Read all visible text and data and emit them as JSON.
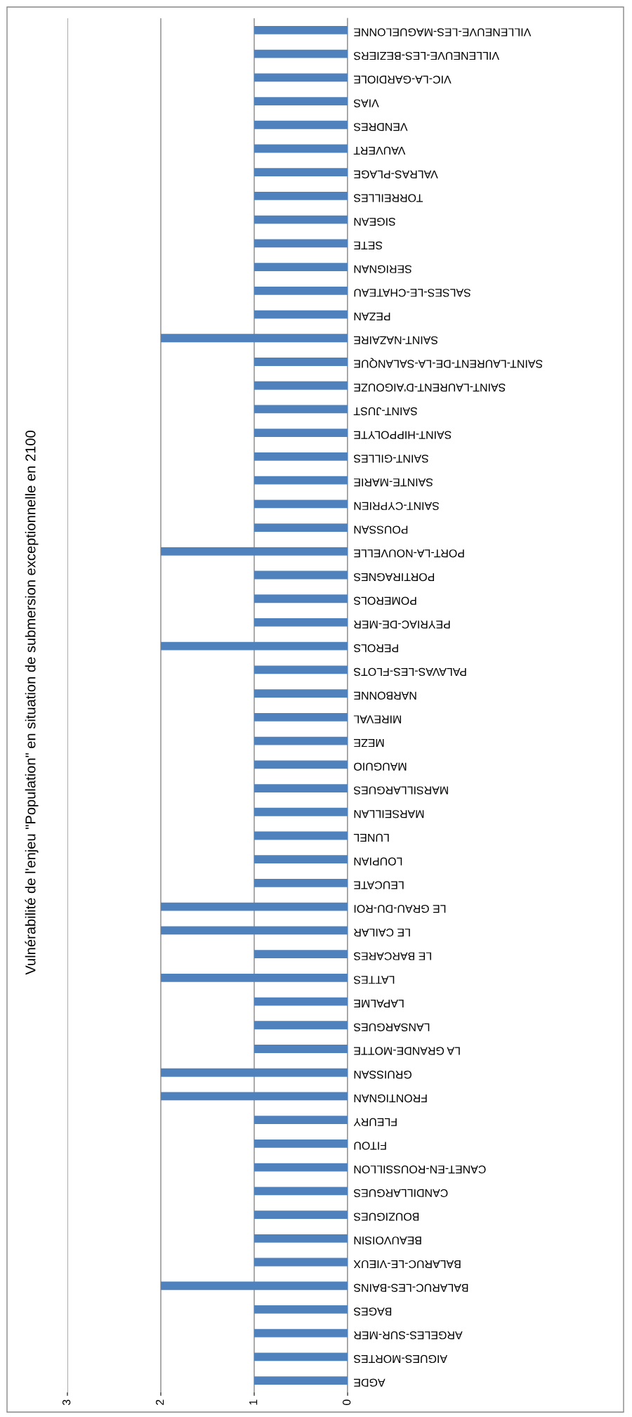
{
  "chart_data": {
    "type": "bar",
    "orientation": "horizontal",
    "title": "Vulnérabilité de l'enjeu \"Population\" en situation de submersion exceptionnelle en 2100",
    "categories": [
      "VILLENEUVE-LES-MAGUELONNE",
      "VILLENEUVE-LES-BEZIERS",
      "VIC-LA-GARDIOLE",
      "VIAS",
      "VENDRES",
      "VAUVERT",
      "VALRAS-PLAGE",
      "TORREILLES",
      "SIGEAN",
      "SETE",
      "SERIGNAN",
      "SALSES-LE-CHATEAU",
      "PEZAN",
      "SAINT-NAZAIRE",
      "SAINT-LAURENT-DE-LA-SALANQUE",
      "SAINT-LAURENT-D'AIGOUZE",
      "SAINT-JUST",
      "SAINT-HIPPOLYTE",
      "SAINT-GILLES",
      "SAINTE-MARIE",
      "SAINT-CYPRIEN",
      "POUSSAN",
      "PORT-LA-NOUVELLE",
      "PORTIRAGNES",
      "POMEROLS",
      "PEYRIAC-DE-MER",
      "PEROLS",
      "PALAVAS-LES-FLOTS",
      "NARBONNE",
      "MIREVAL",
      "MEZE",
      "MAUGUIO",
      "MARSILLARGUES",
      "MARSEILLAN",
      "LUNEL",
      "LOUPIAN",
      "LEUCATE",
      "LE GRAU-DU-ROI",
      "LE CAILAR",
      "LE BARCARES",
      "LATTES",
      "LAPALME",
      "LANSARGUES",
      "LA GRANDE-MOTTE",
      "GRUISSAN",
      "FRONTIGNAN",
      "FLEURY",
      "FITOU",
      "CANET-EN-ROUSSILLON",
      "CANDILLARGUES",
      "BOUZIGUES",
      "BEAUVOISIN",
      "BALARUC-LE-VIEUX",
      "BALARUC-LES-BAINS",
      "BAGES",
      "ARGELES-SUR-MER",
      "AIGUES-MORTES",
      "AGDE"
    ],
    "values": [
      1,
      1,
      1,
      1,
      1,
      1,
      1,
      1,
      1,
      1,
      1,
      1,
      1,
      2,
      1,
      1,
      1,
      1,
      1,
      1,
      1,
      1,
      2,
      1,
      1,
      1,
      2,
      1,
      1,
      1,
      1,
      1,
      1,
      1,
      1,
      1,
      1,
      2,
      2,
      1,
      2,
      1,
      1,
      1,
      2,
      2,
      1,
      1,
      1,
      1,
      1,
      1,
      1,
      2,
      1,
      1,
      1,
      1
    ],
    "color": "#4f81bd",
    "xlim": [
      3,
      0
    ],
    "xticks": [
      0,
      1,
      2,
      3
    ],
    "grid": "x"
  }
}
